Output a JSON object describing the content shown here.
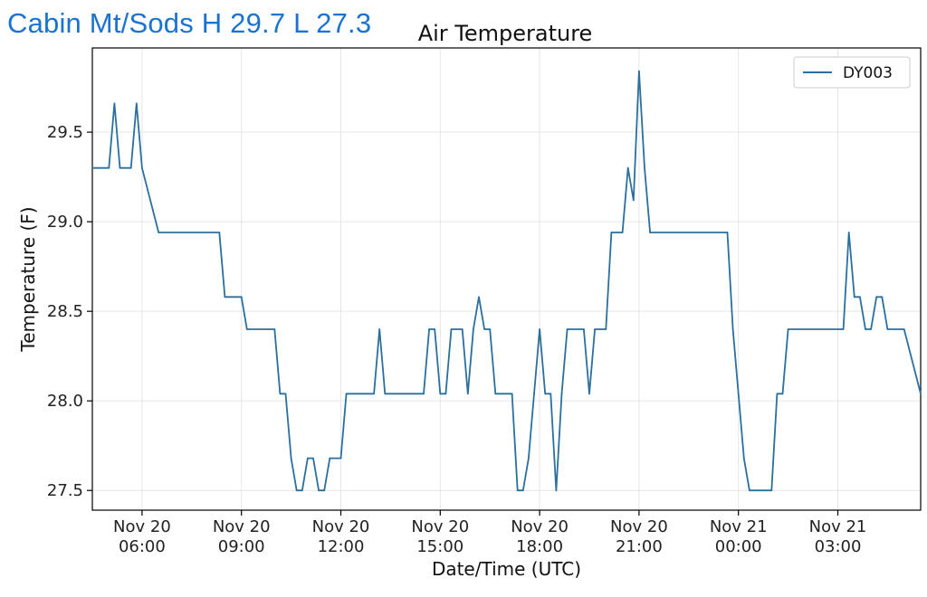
{
  "header": {
    "title": "Cabin Mt/Sods H 29.7 L 27.3"
  },
  "colors": {
    "header": "#1a73d1",
    "series": "#2b6f9e",
    "grid": "#e6e6e6"
  },
  "chart_data": {
    "type": "line",
    "title": "Air Temperature",
    "xlabel": "Date/Time (UTC)",
    "ylabel": "Temperature (F)",
    "ylim": [
      27.39,
      29.97
    ],
    "xlim": [
      "2020-11-20T04:30",
      "2020-11-21T05:30"
    ],
    "yticks": [
      "27.5",
      "28.0",
      "28.5",
      "29.0",
      "29.5"
    ],
    "xticks": [
      {
        "t": "2020-11-20T06:00",
        "line1": "Nov 20",
        "line2": "06:00"
      },
      {
        "t": "2020-11-20T09:00",
        "line1": "Nov 20",
        "line2": "09:00"
      },
      {
        "t": "2020-11-20T12:00",
        "line1": "Nov 20",
        "line2": "12:00"
      },
      {
        "t": "2020-11-20T15:00",
        "line1": "Nov 20",
        "line2": "15:00"
      },
      {
        "t": "2020-11-20T18:00",
        "line1": "Nov 20",
        "line2": "18:00"
      },
      {
        "t": "2020-11-20T21:00",
        "line1": "Nov 20",
        "line2": "21:00"
      },
      {
        "t": "2020-11-21T00:00",
        "line1": "Nov 21",
        "line2": "00:00"
      },
      {
        "t": "2020-11-21T03:00",
        "line1": "Nov 21",
        "line2": "03:00"
      }
    ],
    "grid": true,
    "legend": "top-right",
    "series": [
      {
        "name": "DY003",
        "points": [
          [
            "2020-11-20T04:30",
            29.3
          ],
          [
            "2020-11-20T05:00",
            29.3
          ],
          [
            "2020-11-20T05:10",
            29.66
          ],
          [
            "2020-11-20T05:20",
            29.3
          ],
          [
            "2020-11-20T05:40",
            29.3
          ],
          [
            "2020-11-20T05:50",
            29.66
          ],
          [
            "2020-11-20T06:00",
            29.3
          ],
          [
            "2020-11-20T06:30",
            28.94
          ],
          [
            "2020-11-20T08:20",
            28.94
          ],
          [
            "2020-11-20T08:30",
            28.58
          ],
          [
            "2020-11-20T09:00",
            28.58
          ],
          [
            "2020-11-20T09:10",
            28.4
          ],
          [
            "2020-11-20T10:00",
            28.4
          ],
          [
            "2020-11-20T10:10",
            28.04
          ],
          [
            "2020-11-20T10:20",
            28.04
          ],
          [
            "2020-11-20T10:30",
            27.68
          ],
          [
            "2020-11-20T10:40",
            27.5
          ],
          [
            "2020-11-20T10:50",
            27.5
          ],
          [
            "2020-11-20T11:00",
            27.68
          ],
          [
            "2020-11-20T11:10",
            27.68
          ],
          [
            "2020-11-20T11:20",
            27.5
          ],
          [
            "2020-11-20T11:30",
            27.5
          ],
          [
            "2020-11-20T11:40",
            27.68
          ],
          [
            "2020-11-20T12:00",
            27.68
          ],
          [
            "2020-11-20T12:10",
            28.04
          ],
          [
            "2020-11-20T13:00",
            28.04
          ],
          [
            "2020-11-20T13:10",
            28.4
          ],
          [
            "2020-11-20T13:20",
            28.04
          ],
          [
            "2020-11-20T14:30",
            28.04
          ],
          [
            "2020-11-20T14:40",
            28.4
          ],
          [
            "2020-11-20T14:50",
            28.4
          ],
          [
            "2020-11-20T15:00",
            28.04
          ],
          [
            "2020-11-20T15:10",
            28.04
          ],
          [
            "2020-11-20T15:20",
            28.4
          ],
          [
            "2020-11-20T15:40",
            28.4
          ],
          [
            "2020-11-20T15:50",
            28.04
          ],
          [
            "2020-11-20T16:00",
            28.4
          ],
          [
            "2020-11-20T16:10",
            28.58
          ],
          [
            "2020-11-20T16:20",
            28.4
          ],
          [
            "2020-11-20T16:30",
            28.4
          ],
          [
            "2020-11-20T16:40",
            28.04
          ],
          [
            "2020-11-20T17:10",
            28.04
          ],
          [
            "2020-11-20T17:20",
            27.5
          ],
          [
            "2020-11-20T17:30",
            27.5
          ],
          [
            "2020-11-20T17:40",
            27.68
          ],
          [
            "2020-11-20T17:50",
            28.04
          ],
          [
            "2020-11-20T18:00",
            28.4
          ],
          [
            "2020-11-20T18:10",
            28.04
          ],
          [
            "2020-11-20T18:20",
            28.04
          ],
          [
            "2020-11-20T18:30",
            27.5
          ],
          [
            "2020-11-20T18:40",
            28.04
          ],
          [
            "2020-11-20T18:50",
            28.4
          ],
          [
            "2020-11-20T19:20",
            28.4
          ],
          [
            "2020-11-20T19:30",
            28.04
          ],
          [
            "2020-11-20T19:40",
            28.4
          ],
          [
            "2020-11-20T20:00",
            28.4
          ],
          [
            "2020-11-20T20:10",
            28.94
          ],
          [
            "2020-11-20T20:30",
            28.94
          ],
          [
            "2020-11-20T20:40",
            29.3
          ],
          [
            "2020-11-20T20:50",
            29.12
          ],
          [
            "2020-11-20T21:00",
            29.84
          ],
          [
            "2020-11-20T21:10",
            29.3
          ],
          [
            "2020-11-20T21:20",
            28.94
          ],
          [
            "2020-11-20T23:40",
            28.94
          ],
          [
            "2020-11-20T23:50",
            28.4
          ],
          [
            "2020-11-21T00:00",
            28.04
          ],
          [
            "2020-11-21T00:10",
            27.68
          ],
          [
            "2020-11-21T00:20",
            27.5
          ],
          [
            "2020-11-21T01:00",
            27.5
          ],
          [
            "2020-11-21T01:10",
            28.04
          ],
          [
            "2020-11-21T01:20",
            28.04
          ],
          [
            "2020-11-21T01:30",
            28.4
          ],
          [
            "2020-11-21T03:10",
            28.4
          ],
          [
            "2020-11-21T03:20",
            28.94
          ],
          [
            "2020-11-21T03:30",
            28.58
          ],
          [
            "2020-11-21T03:40",
            28.58
          ],
          [
            "2020-11-21T03:50",
            28.4
          ],
          [
            "2020-11-21T04:00",
            28.4
          ],
          [
            "2020-11-21T04:10",
            28.58
          ],
          [
            "2020-11-21T04:20",
            28.58
          ],
          [
            "2020-11-21T04:30",
            28.4
          ],
          [
            "2020-11-21T05:00",
            28.4
          ],
          [
            "2020-11-21T05:30",
            28.04
          ]
        ]
      }
    ]
  }
}
